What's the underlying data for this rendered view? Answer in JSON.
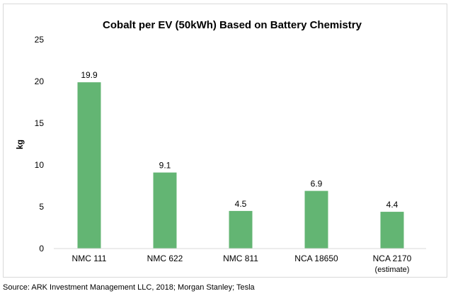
{
  "chart_data": {
    "type": "bar",
    "title": "Cobalt per EV (50kWh) Based on Battery Chemistry",
    "xlabel": "",
    "ylabel": "kg",
    "ylim": [
      0,
      25
    ],
    "yticks": [
      "0",
      "5",
      "10",
      "15",
      "20",
      "25"
    ],
    "grid": false,
    "categories": [
      "NMC 111",
      "NMC 622",
      "NMC 811",
      "NCA 18650",
      "NCA 2170"
    ],
    "category_sublabels": [
      "",
      "",
      "",
      "",
      "(estimate)"
    ],
    "values": [
      19.9,
      9.1,
      4.5,
      6.9,
      4.4
    ],
    "data_labels": [
      "19.9",
      "9.1",
      "4.5",
      "6.9",
      "4.4"
    ],
    "bar_color": "#63b573"
  },
  "source": "Source: ARK Investment Management LLC, 2018; Morgan Stanley; Tesla"
}
